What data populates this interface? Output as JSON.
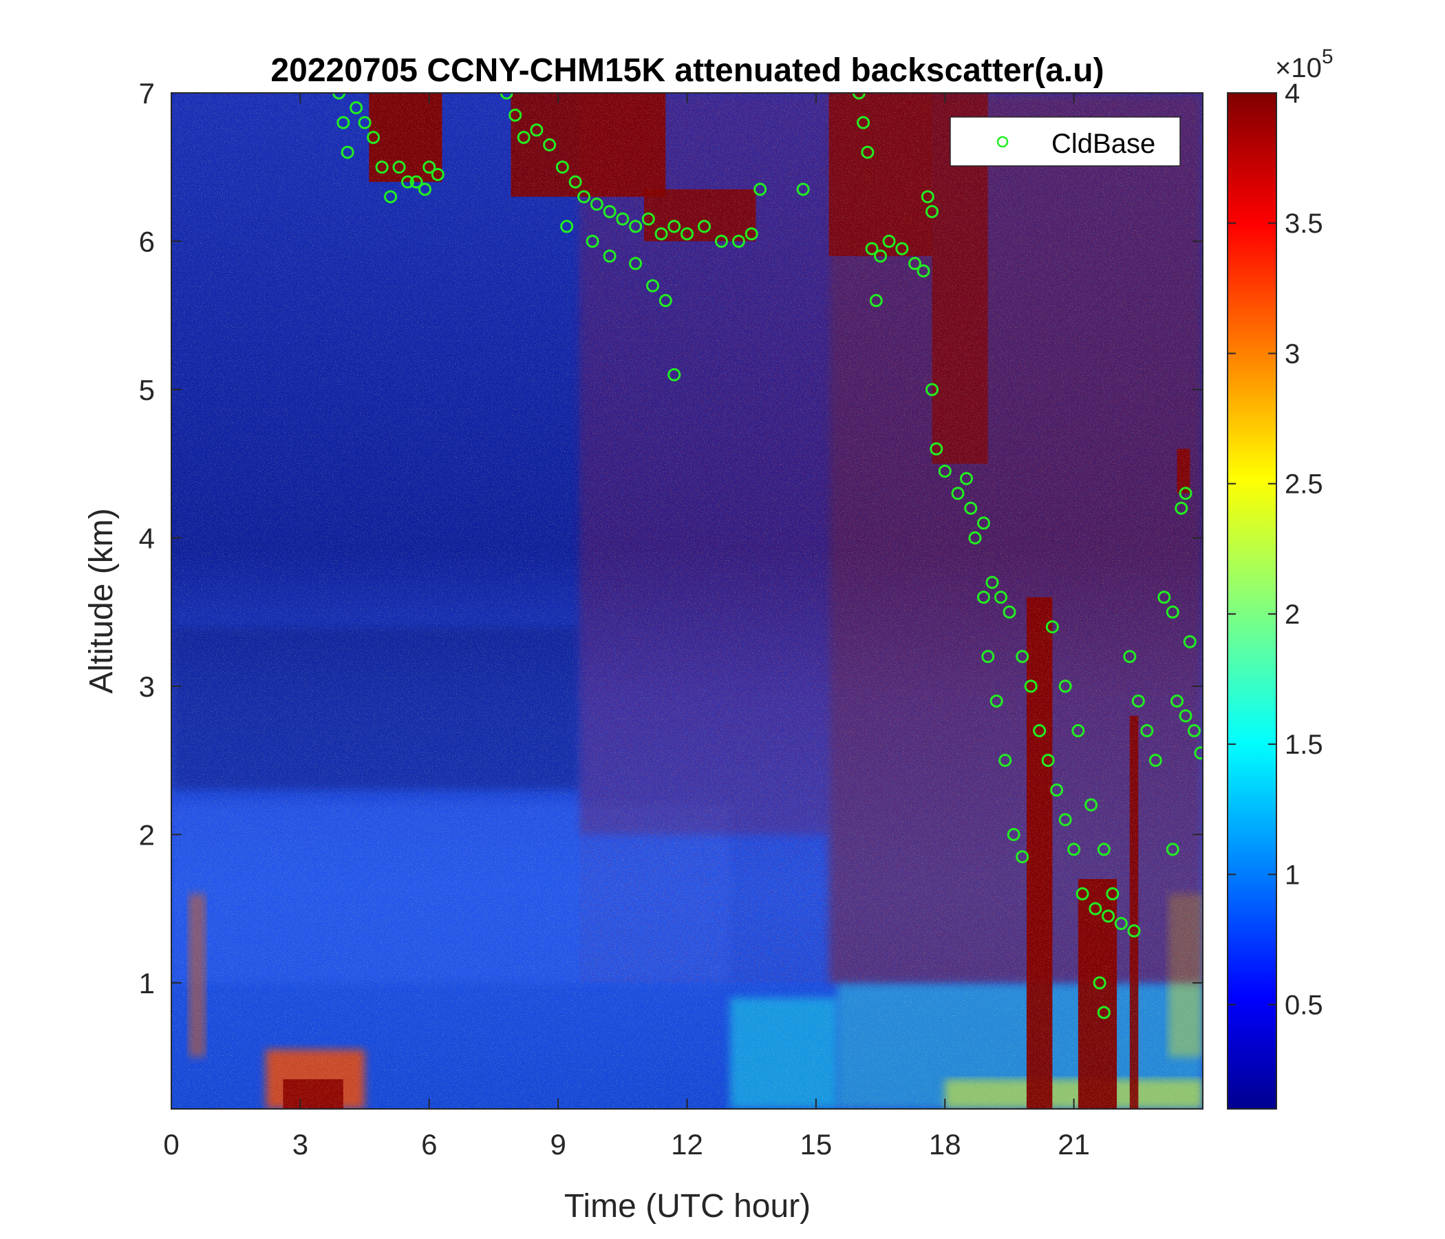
{
  "chart_data": {
    "type": "heatmap",
    "title": "20220705 CCNY-CHM15K attenuated backscatter(a.u)",
    "xlabel": "Time (UTC hour)",
    "ylabel": "Altitude (km)",
    "xlim": [
      0,
      24
    ],
    "ylim": [
      0.15,
      7
    ],
    "xticks": [
      0,
      3,
      6,
      9,
      12,
      15,
      18,
      21
    ],
    "xtick_labels": [
      "0",
      "3",
      "6",
      "9",
      "12",
      "15",
      "18",
      "21"
    ],
    "yticks": [
      1,
      2,
      3,
      4,
      5,
      6,
      7
    ],
    "ytick_labels": [
      "1",
      "2",
      "3",
      "4",
      "5",
      "6",
      "7"
    ],
    "colorbar": {
      "colormap": "jet",
      "range": [
        10000,
        400000
      ],
      "ticks": [
        50000,
        100000,
        150000,
        200000,
        250000,
        300000,
        350000,
        400000
      ],
      "tick_labels": [
        "0.5",
        "1",
        "1.5",
        "2",
        "2.5",
        "3",
        "3.5",
        "4"
      ],
      "exponent_label": "×10",
      "exponent": "5"
    },
    "legend": {
      "placement": "top-right",
      "entries": [
        {
          "name": "CldBase",
          "marker": "circle",
          "color": "#22ee22"
        }
      ]
    },
    "series": [
      {
        "name": "CldBase",
        "type": "scatter",
        "color": "#22ee22",
        "points": [
          [
            3.9,
            7.0
          ],
          [
            4.0,
            6.8
          ],
          [
            4.1,
            6.6
          ],
          [
            4.3,
            6.9
          ],
          [
            4.5,
            6.8
          ],
          [
            4.7,
            6.7
          ],
          [
            4.9,
            6.5
          ],
          [
            5.1,
            6.3
          ],
          [
            5.3,
            6.5
          ],
          [
            5.5,
            6.4
          ],
          [
            5.7,
            6.4
          ],
          [
            5.9,
            6.35
          ],
          [
            6.0,
            6.5
          ],
          [
            6.2,
            6.45
          ],
          [
            7.8,
            7.0
          ],
          [
            8.0,
            6.85
          ],
          [
            8.2,
            6.7
          ],
          [
            8.5,
            6.75
          ],
          [
            8.8,
            6.65
          ],
          [
            9.1,
            6.5
          ],
          [
            9.4,
            6.4
          ],
          [
            9.6,
            6.3
          ],
          [
            9.9,
            6.25
          ],
          [
            10.2,
            6.2
          ],
          [
            10.5,
            6.15
          ],
          [
            10.8,
            6.1
          ],
          [
            11.1,
            6.15
          ],
          [
            11.4,
            6.05
          ],
          [
            11.7,
            6.1
          ],
          [
            12.0,
            6.05
          ],
          [
            12.4,
            6.1
          ],
          [
            12.8,
            6.0
          ],
          [
            13.2,
            6.0
          ],
          [
            13.5,
            6.05
          ],
          [
            9.2,
            6.1
          ],
          [
            9.8,
            6.0
          ],
          [
            10.2,
            5.9
          ],
          [
            10.8,
            5.85
          ],
          [
            11.2,
            5.7
          ],
          [
            11.5,
            5.6
          ],
          [
            11.7,
            5.1
          ],
          [
            13.7,
            6.35
          ],
          [
            14.7,
            6.35
          ],
          [
            16.0,
            7.0
          ],
          [
            16.1,
            6.8
          ],
          [
            16.2,
            6.6
          ],
          [
            16.3,
            5.95
          ],
          [
            16.5,
            5.9
          ],
          [
            16.7,
            6.0
          ],
          [
            17.0,
            5.95
          ],
          [
            17.3,
            5.85
          ],
          [
            17.5,
            5.8
          ],
          [
            16.4,
            5.6
          ],
          [
            17.6,
            6.3
          ],
          [
            17.7,
            6.2
          ],
          [
            17.7,
            5.0
          ],
          [
            17.8,
            4.6
          ],
          [
            18.0,
            4.45
          ],
          [
            18.3,
            4.3
          ],
          [
            18.6,
            4.2
          ],
          [
            18.9,
            4.1
          ],
          [
            19.1,
            3.7
          ],
          [
            19.3,
            3.6
          ],
          [
            19.5,
            3.5
          ],
          [
            19.8,
            3.2
          ],
          [
            20.0,
            3.0
          ],
          [
            20.2,
            2.7
          ],
          [
            20.4,
            2.5
          ],
          [
            20.6,
            2.3
          ],
          [
            20.8,
            2.1
          ],
          [
            21.0,
            1.9
          ],
          [
            21.2,
            1.6
          ],
          [
            21.5,
            1.5
          ],
          [
            21.8,
            1.45
          ],
          [
            22.1,
            1.4
          ],
          [
            22.4,
            1.35
          ],
          [
            18.5,
            4.4
          ],
          [
            18.7,
            4.0
          ],
          [
            18.9,
            3.6
          ],
          [
            19.0,
            3.2
          ],
          [
            19.2,
            2.9
          ],
          [
            19.4,
            2.5
          ],
          [
            19.6,
            2.0
          ],
          [
            19.8,
            1.85
          ],
          [
            20.5,
            3.4
          ],
          [
            20.8,
            3.0
          ],
          [
            21.1,
            2.7
          ],
          [
            21.4,
            2.2
          ],
          [
            21.7,
            1.9
          ],
          [
            21.9,
            1.6
          ],
          [
            21.6,
            1.0
          ],
          [
            21.7,
            0.8
          ],
          [
            22.3,
            3.2
          ],
          [
            22.5,
            2.9
          ],
          [
            22.7,
            2.7
          ],
          [
            22.9,
            2.5
          ],
          [
            23.1,
            3.6
          ],
          [
            23.3,
            3.5
          ],
          [
            23.5,
            4.2
          ],
          [
            23.6,
            4.3
          ],
          [
            23.7,
            3.3
          ],
          [
            23.4,
            2.9
          ],
          [
            23.6,
            2.8
          ],
          [
            23.8,
            2.7
          ],
          [
            23.95,
            2.55
          ],
          [
            23.3,
            1.9
          ]
        ]
      }
    ]
  }
}
